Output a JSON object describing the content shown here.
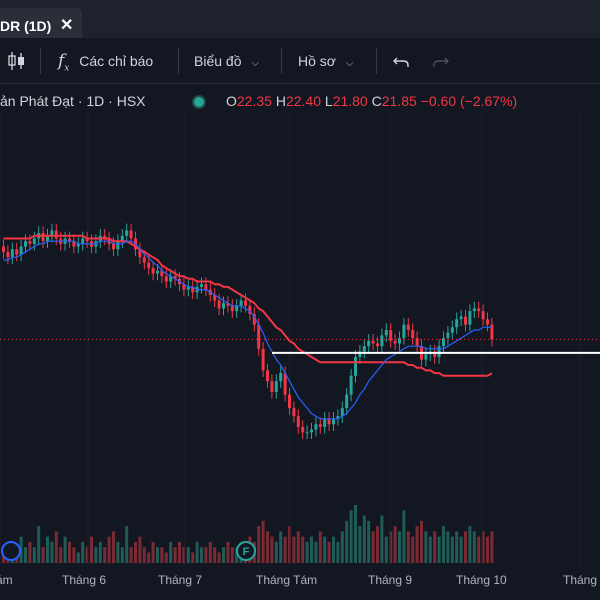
{
  "tab": {
    "label": "DR (1D)",
    "close_icon": "close-icon"
  },
  "toolbar": {
    "chart_type_icon": "candles-icon",
    "indicators_icon": "fx-icon",
    "indicators_label": "Các chỉ báo",
    "charts_label": "Biểu đồ",
    "profile_label": "Hồ sơ",
    "undo_icon": "undo-icon",
    "redo_icon": "redo-icon"
  },
  "legend": {
    "symbol": "ản Phát Đạt · 1D · HSX",
    "o_key": "O",
    "o_val": "22.35",
    "h_key": "H",
    "h_val": "22.40",
    "l_key": "L",
    "l_val": "21.80",
    "c_key": "C",
    "c_val": "21.85",
    "change": "−0.60 (−2.67%)",
    "down_color": "#f23645",
    "up_color": "#26a69a"
  },
  "chart_data": {
    "type": "candlestick",
    "x_labels": [
      "ám",
      "Tháng 6",
      "Tháng 7",
      "Tháng Tám",
      "Tháng 9",
      "Tháng 10",
      "Tháng"
    ],
    "markers": [
      {
        "label": "",
        "color": "#2962ff"
      },
      {
        "label": "F",
        "color": "#26a69a"
      }
    ],
    "price_range": [
      17.0,
      30.0
    ],
    "last_close": 21.85,
    "horizontal_line": 21.35,
    "close": [
      25.1,
      24.9,
      25.2,
      25.0,
      25.3,
      25.5,
      25.4,
      25.6,
      25.8,
      25.5,
      25.7,
      25.9,
      25.6,
      25.4,
      25.6,
      25.5,
      25.3,
      25.4,
      25.6,
      25.5,
      25.3,
      25.5,
      25.7,
      25.6,
      25.4,
      25.2,
      25.5,
      25.7,
      25.9,
      25.6,
      25.2,
      24.9,
      24.7,
      24.5,
      24.3,
      24.4,
      24.2,
      24.0,
      24.2,
      24.1,
      23.9,
      23.7,
      23.8,
      23.6,
      23.8,
      23.9,
      23.7,
      23.5,
      23.3,
      23.0,
      23.2,
      23.1,
      22.9,
      23.1,
      23.3,
      23.1,
      22.8,
      22.4,
      21.5,
      20.7,
      20.3,
      19.9,
      20.3,
      20.6,
      19.8,
      19.3,
      19.0,
      18.6,
      18.4,
      18.4,
      18.5,
      18.7,
      18.6,
      18.9,
      18.7,
      18.9,
      19.0,
      19.3,
      19.8,
      20.5,
      21.2,
      21.4,
      21.6,
      21.8,
      21.7,
      21.6,
      22.0,
      22.2,
      21.8,
      21.7,
      21.9,
      22.4,
      22.2,
      21.9,
      21.6,
      21.1,
      21.3,
      21.4,
      21.2,
      21.6,
      21.9,
      22.1,
      22.3,
      22.6,
      22.7,
      22.4,
      22.9,
      23.0,
      22.9,
      22.6,
      22.4,
      21.85
    ],
    "ma_short": [
      24.8,
      24.8,
      24.9,
      24.9,
      25.0,
      25.1,
      25.2,
      25.3,
      25.4,
      25.4,
      25.5,
      25.5,
      25.5,
      25.5,
      25.5,
      25.5,
      25.5,
      25.4,
      25.4,
      25.4,
      25.4,
      25.4,
      25.5,
      25.5,
      25.5,
      25.4,
      25.4,
      25.4,
      25.5,
      25.5,
      25.4,
      25.2,
      25.0,
      24.9,
      24.7,
      24.6,
      24.4,
      24.3,
      24.2,
      24.1,
      24.0,
      23.9,
      23.8,
      23.8,
      23.7,
      23.7,
      23.7,
      23.6,
      23.5,
      23.4,
      23.3,
      23.2,
      23.1,
      23.1,
      23.1,
      23.0,
      22.9,
      22.7,
      22.4,
      22.1,
      21.7,
      21.4,
      21.1,
      20.9,
      20.6,
      20.3,
      20.0,
      19.7,
      19.5,
      19.3,
      19.1,
      19.0,
      18.9,
      18.9,
      18.9,
      18.9,
      18.9,
      19.0,
      19.1,
      19.3,
      19.5,
      19.8,
      20.0,
      20.3,
      20.5,
      20.7,
      20.9,
      21.1,
      21.2,
      21.3,
      21.4,
      21.5,
      21.6,
      21.6,
      21.6,
      21.6,
      21.5,
      21.5,
      21.5,
      21.5,
      21.5,
      21.6,
      21.7,
      21.8,
      21.9,
      22.0,
      22.1,
      22.2,
      22.2,
      22.3,
      22.3,
      22.3
    ],
    "ma_long": [
      25.6,
      25.6,
      25.6,
      25.6,
      25.6,
      25.6,
      25.6,
      25.7,
      25.7,
      25.7,
      25.7,
      25.7,
      25.7,
      25.7,
      25.7,
      25.7,
      25.7,
      25.7,
      25.7,
      25.6,
      25.6,
      25.6,
      25.6,
      25.6,
      25.6,
      25.5,
      25.5,
      25.5,
      25.5,
      25.4,
      25.3,
      25.2,
      25.1,
      25.0,
      24.9,
      24.8,
      24.6,
      24.5,
      24.4,
      24.3,
      24.2,
      24.2,
      24.1,
      24.1,
      24.0,
      24.0,
      24.0,
      24.0,
      23.9,
      23.9,
      23.8,
      23.8,
      23.7,
      23.6,
      23.5,
      23.4,
      23.3,
      23.2,
      23.0,
      22.9,
      22.7,
      22.5,
      22.3,
      22.2,
      22.0,
      21.8,
      21.7,
      21.5,
      21.4,
      21.3,
      21.2,
      21.1,
      21.0,
      21.0,
      21.0,
      21.0,
      21.0,
      21.0,
      21.0,
      21.0,
      21.0,
      21.0,
      21.0,
      21.0,
      21.0,
      21.0,
      21.0,
      21.0,
      21.0,
      21.0,
      21.0,
      21.0,
      20.9,
      20.9,
      20.8,
      20.8,
      20.7,
      20.7,
      20.6,
      20.6,
      20.5,
      20.5,
      20.5,
      20.5,
      20.5,
      20.5,
      20.5,
      20.5,
      20.5,
      20.5,
      20.5,
      20.6
    ],
    "volume": [
      3,
      2,
      4,
      3,
      5,
      3,
      4,
      3,
      7,
      3,
      5,
      4,
      6,
      3,
      5,
      4,
      3,
      2,
      4,
      3,
      5,
      3,
      4,
      3,
      5,
      6,
      4,
      3,
      7,
      3,
      4,
      5,
      3,
      2,
      4,
      3,
      3,
      2,
      4,
      3,
      4,
      3,
      3,
      2,
      4,
      3,
      3,
      4,
      3,
      2,
      3,
      4,
      3,
      3,
      4,
      3,
      5,
      4,
      7,
      8,
      6,
      5,
      4,
      6,
      5,
      7,
      5,
      6,
      5,
      4,
      5,
      4,
      6,
      5,
      4,
      5,
      4,
      6,
      8,
      10,
      11,
      7,
      9,
      8,
      6,
      7,
      9,
      5,
      6,
      7,
      6,
      10,
      6,
      5,
      7,
      8,
      6,
      5,
      6,
      5,
      7,
      6,
      5,
      6,
      5,
      6,
      7,
      6,
      5,
      6,
      5,
      6
    ]
  }
}
